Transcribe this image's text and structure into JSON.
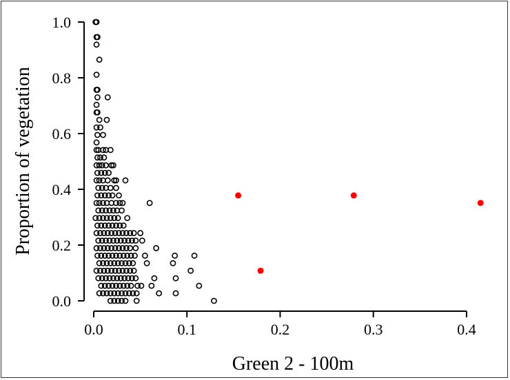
{
  "chart_data": {
    "type": "scatter",
    "xlabel": "Green 2 - 100m",
    "ylabel": "Proportion of vegetation",
    "xlim": [
      0,
      0.42
    ],
    "ylim": [
      0,
      1.0
    ],
    "xticks": [
      "0.0",
      "0.1",
      "0.2",
      "0.3",
      "0.4"
    ],
    "yticks": [
      "0.0",
      "0.2",
      "0.4",
      "0.6",
      "0.8",
      "1.0"
    ],
    "grid": false,
    "legend": "none",
    "colors": {
      "series_black": "#000000",
      "series_red": "#ff0000"
    },
    "series": [
      {
        "marker": "open-circle",
        "color": "#000000",
        "points": [
          [
            0.002,
            1.0
          ],
          [
            0.003,
            1.0
          ],
          [
            0.003,
            0.946
          ],
          [
            0.004,
            0.946
          ],
          [
            0.003,
            0.919
          ],
          [
            0.006,
            0.865
          ],
          [
            0.003,
            0.811
          ],
          [
            0.003,
            0.757
          ],
          [
            0.004,
            0.757
          ],
          [
            0.004,
            0.73
          ],
          [
            0.015,
            0.73
          ],
          [
            0.003,
            0.703
          ],
          [
            0.003,
            0.676
          ],
          [
            0.004,
            0.676
          ],
          [
            0.006,
            0.649
          ],
          [
            0.014,
            0.649
          ],
          [
            0.003,
            0.622
          ],
          [
            0.007,
            0.622
          ],
          [
            0.004,
            0.595
          ],
          [
            0.01,
            0.595
          ],
          [
            0.003,
            0.568
          ],
          [
            0.003,
            0.541
          ],
          [
            0.005,
            0.541
          ],
          [
            0.01,
            0.541
          ],
          [
            0.013,
            0.541
          ],
          [
            0.018,
            0.541
          ],
          [
            0.004,
            0.514
          ],
          [
            0.007,
            0.514
          ],
          [
            0.011,
            0.514
          ],
          [
            0.003,
            0.486
          ],
          [
            0.006,
            0.486
          ],
          [
            0.009,
            0.486
          ],
          [
            0.013,
            0.486
          ],
          [
            0.019,
            0.486
          ],
          [
            0.021,
            0.486
          ],
          [
            0.004,
            0.459
          ],
          [
            0.008,
            0.459
          ],
          [
            0.012,
            0.459
          ],
          [
            0.016,
            0.459
          ],
          [
            0.003,
            0.432
          ],
          [
            0.006,
            0.432
          ],
          [
            0.01,
            0.432
          ],
          [
            0.015,
            0.432
          ],
          [
            0.022,
            0.432
          ],
          [
            0.024,
            0.432
          ],
          [
            0.034,
            0.432
          ],
          [
            0.005,
            0.405
          ],
          [
            0.009,
            0.405
          ],
          [
            0.013,
            0.405
          ],
          [
            0.018,
            0.405
          ],
          [
            0.024,
            0.405
          ],
          [
            0.004,
            0.378
          ],
          [
            0.008,
            0.378
          ],
          [
            0.012,
            0.378
          ],
          [
            0.016,
            0.378
          ],
          [
            0.02,
            0.378
          ],
          [
            0.027,
            0.378
          ],
          [
            0.003,
            0.351
          ],
          [
            0.006,
            0.351
          ],
          [
            0.01,
            0.351
          ],
          [
            0.014,
            0.351
          ],
          [
            0.019,
            0.351
          ],
          [
            0.024,
            0.351
          ],
          [
            0.028,
            0.351
          ],
          [
            0.031,
            0.351
          ],
          [
            0.06,
            0.351
          ],
          [
            0.005,
            0.324
          ],
          [
            0.009,
            0.324
          ],
          [
            0.013,
            0.324
          ],
          [
            0.017,
            0.324
          ],
          [
            0.021,
            0.324
          ],
          [
            0.025,
            0.324
          ],
          [
            0.03,
            0.324
          ],
          [
            0.002,
            0.297
          ],
          [
            0.006,
            0.297
          ],
          [
            0.01,
            0.297
          ],
          [
            0.014,
            0.297
          ],
          [
            0.018,
            0.297
          ],
          [
            0.022,
            0.297
          ],
          [
            0.026,
            0.297
          ],
          [
            0.036,
            0.297
          ],
          [
            0.004,
            0.27
          ],
          [
            0.008,
            0.27
          ],
          [
            0.012,
            0.27
          ],
          [
            0.016,
            0.27
          ],
          [
            0.02,
            0.27
          ],
          [
            0.024,
            0.27
          ],
          [
            0.028,
            0.27
          ],
          [
            0.032,
            0.27
          ],
          [
            0.003,
            0.243
          ],
          [
            0.007,
            0.243
          ],
          [
            0.011,
            0.243
          ],
          [
            0.015,
            0.243
          ],
          [
            0.019,
            0.243
          ],
          [
            0.023,
            0.243
          ],
          [
            0.027,
            0.243
          ],
          [
            0.031,
            0.243
          ],
          [
            0.035,
            0.243
          ],
          [
            0.039,
            0.243
          ],
          [
            0.043,
            0.243
          ],
          [
            0.05,
            0.243
          ],
          [
            0.005,
            0.216
          ],
          [
            0.009,
            0.216
          ],
          [
            0.013,
            0.216
          ],
          [
            0.017,
            0.216
          ],
          [
            0.021,
            0.216
          ],
          [
            0.025,
            0.216
          ],
          [
            0.029,
            0.216
          ],
          [
            0.033,
            0.216
          ],
          [
            0.037,
            0.216
          ],
          [
            0.041,
            0.216
          ],
          [
            0.045,
            0.216
          ],
          [
            0.052,
            0.216
          ],
          [
            0.003,
            0.189
          ],
          [
            0.007,
            0.189
          ],
          [
            0.011,
            0.189
          ],
          [
            0.015,
            0.189
          ],
          [
            0.019,
            0.189
          ],
          [
            0.023,
            0.189
          ],
          [
            0.027,
            0.189
          ],
          [
            0.031,
            0.189
          ],
          [
            0.035,
            0.189
          ],
          [
            0.039,
            0.189
          ],
          [
            0.045,
            0.189
          ],
          [
            0.067,
            0.189
          ],
          [
            0.004,
            0.162
          ],
          [
            0.008,
            0.162
          ],
          [
            0.012,
            0.162
          ],
          [
            0.016,
            0.162
          ],
          [
            0.02,
            0.162
          ],
          [
            0.024,
            0.162
          ],
          [
            0.028,
            0.162
          ],
          [
            0.032,
            0.162
          ],
          [
            0.036,
            0.162
          ],
          [
            0.04,
            0.162
          ],
          [
            0.044,
            0.162
          ],
          [
            0.055,
            0.162
          ],
          [
            0.087,
            0.162
          ],
          [
            0.108,
            0.162
          ],
          [
            0.006,
            0.135
          ],
          [
            0.01,
            0.135
          ],
          [
            0.014,
            0.135
          ],
          [
            0.018,
            0.135
          ],
          [
            0.022,
            0.135
          ],
          [
            0.026,
            0.135
          ],
          [
            0.03,
            0.135
          ],
          [
            0.034,
            0.135
          ],
          [
            0.038,
            0.135
          ],
          [
            0.042,
            0.135
          ],
          [
            0.057,
            0.135
          ],
          [
            0.085,
            0.135
          ],
          [
            0.003,
            0.108
          ],
          [
            0.007,
            0.108
          ],
          [
            0.011,
            0.108
          ],
          [
            0.015,
            0.108
          ],
          [
            0.019,
            0.108
          ],
          [
            0.023,
            0.108
          ],
          [
            0.027,
            0.108
          ],
          [
            0.031,
            0.108
          ],
          [
            0.035,
            0.108
          ],
          [
            0.039,
            0.108
          ],
          [
            0.043,
            0.108
          ],
          [
            0.104,
            0.108
          ],
          [
            0.005,
            0.081
          ],
          [
            0.009,
            0.081
          ],
          [
            0.013,
            0.081
          ],
          [
            0.017,
            0.081
          ],
          [
            0.021,
            0.081
          ],
          [
            0.025,
            0.081
          ],
          [
            0.029,
            0.081
          ],
          [
            0.033,
            0.081
          ],
          [
            0.037,
            0.081
          ],
          [
            0.041,
            0.081
          ],
          [
            0.045,
            0.081
          ],
          [
            0.065,
            0.081
          ],
          [
            0.088,
            0.081
          ],
          [
            0.008,
            0.054
          ],
          [
            0.012,
            0.054
          ],
          [
            0.016,
            0.054
          ],
          [
            0.02,
            0.054
          ],
          [
            0.024,
            0.054
          ],
          [
            0.028,
            0.054
          ],
          [
            0.032,
            0.054
          ],
          [
            0.036,
            0.054
          ],
          [
            0.04,
            0.054
          ],
          [
            0.047,
            0.054
          ],
          [
            0.051,
            0.054
          ],
          [
            0.062,
            0.054
          ],
          [
            0.113,
            0.054
          ],
          [
            0.006,
            0.027
          ],
          [
            0.01,
            0.027
          ],
          [
            0.014,
            0.027
          ],
          [
            0.018,
            0.027
          ],
          [
            0.022,
            0.027
          ],
          [
            0.026,
            0.027
          ],
          [
            0.03,
            0.027
          ],
          [
            0.034,
            0.027
          ],
          [
            0.038,
            0.027
          ],
          [
            0.042,
            0.027
          ],
          [
            0.046,
            0.027
          ],
          [
            0.07,
            0.027
          ],
          [
            0.088,
            0.027
          ],
          [
            0.018,
            0.0
          ],
          [
            0.022,
            0.0
          ],
          [
            0.026,
            0.0
          ],
          [
            0.03,
            0.0
          ],
          [
            0.034,
            0.0
          ],
          [
            0.046,
            0.0
          ],
          [
            0.129,
            0.0
          ]
        ]
      },
      {
        "marker": "filled-circle",
        "color": "#ff0000",
        "points": [
          [
            0.155,
            0.378
          ],
          [
            0.279,
            0.378
          ],
          [
            0.415,
            0.351
          ],
          [
            0.179,
            0.108
          ]
        ]
      }
    ]
  }
}
